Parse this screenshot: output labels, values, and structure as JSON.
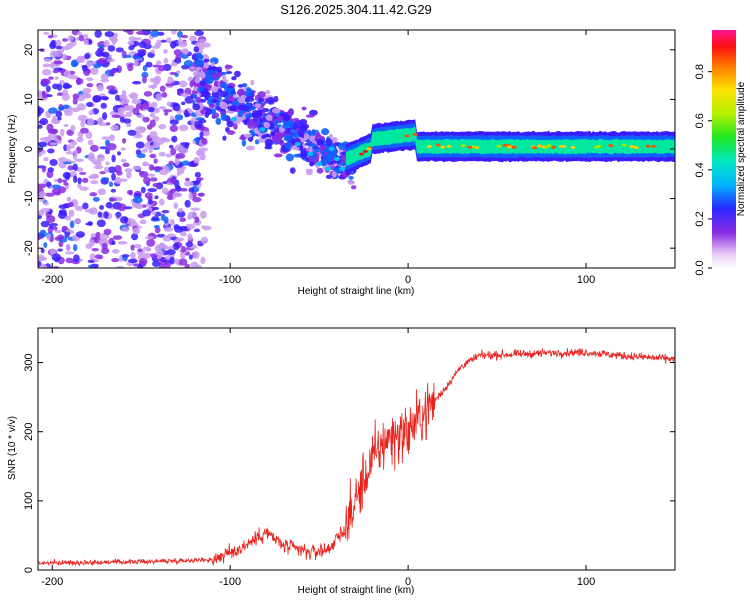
{
  "title": "S126.2025.304.11.42.G29",
  "chart_data": [
    {
      "type": "heatmap",
      "name": "spectrogram",
      "xlabel": "Height of straight line (km)",
      "ylabel": "Frequency (Hz)",
      "xlim": [
        -208,
        150
      ],
      "ylim": [
        -24,
        24
      ],
      "xticks": [
        -200,
        -100,
        0,
        100
      ],
      "yticks": [
        -20,
        -10,
        0,
        10,
        20
      ],
      "colorbar": {
        "label": "Normalized spectral amplitude",
        "range": [
          0,
          0.97
        ],
        "ticks": [
          0.0,
          0.2,
          0.4,
          0.6,
          0.8
        ]
      },
      "description_series": [
        {
          "name": "noise_region",
          "x_range": [
            -208,
            -120
          ],
          "y_range": [
            -24,
            24
          ],
          "level": 0.18
        },
        {
          "name": "transition_region",
          "x_range": [
            -120,
            -30
          ],
          "center_y": [
            14,
            -4
          ],
          "level": 0.3
        },
        {
          "name": "signal_trace",
          "x_range": [
            -35,
            150
          ],
          "center_y": 0.5,
          "level": 0.55
        }
      ]
    },
    {
      "type": "line",
      "name": "snr",
      "xlabel": "Height of straight line (km)",
      "ylabel": "SNR (10 * v/v)",
      "xlim": [
        -208,
        150
      ],
      "ylim": [
        0,
        350
      ],
      "xticks": [
        -200,
        -100,
        0,
        100
      ],
      "yticks": [
        0,
        100,
        200,
        300
      ],
      "color": "#e8231e",
      "envelope": {
        "x": [
          -208,
          -150,
          -110,
          -95,
          -80,
          -70,
          -55,
          -45,
          -35,
          -28,
          -20,
          -12,
          0,
          10,
          20,
          30,
          40,
          60,
          80,
          100,
          120,
          150
        ],
        "y": [
          10,
          12,
          15,
          30,
          55,
          35,
          25,
          30,
          60,
          110,
          160,
          190,
          200,
          230,
          260,
          295,
          310,
          312,
          314,
          315,
          310,
          305
        ]
      }
    }
  ]
}
